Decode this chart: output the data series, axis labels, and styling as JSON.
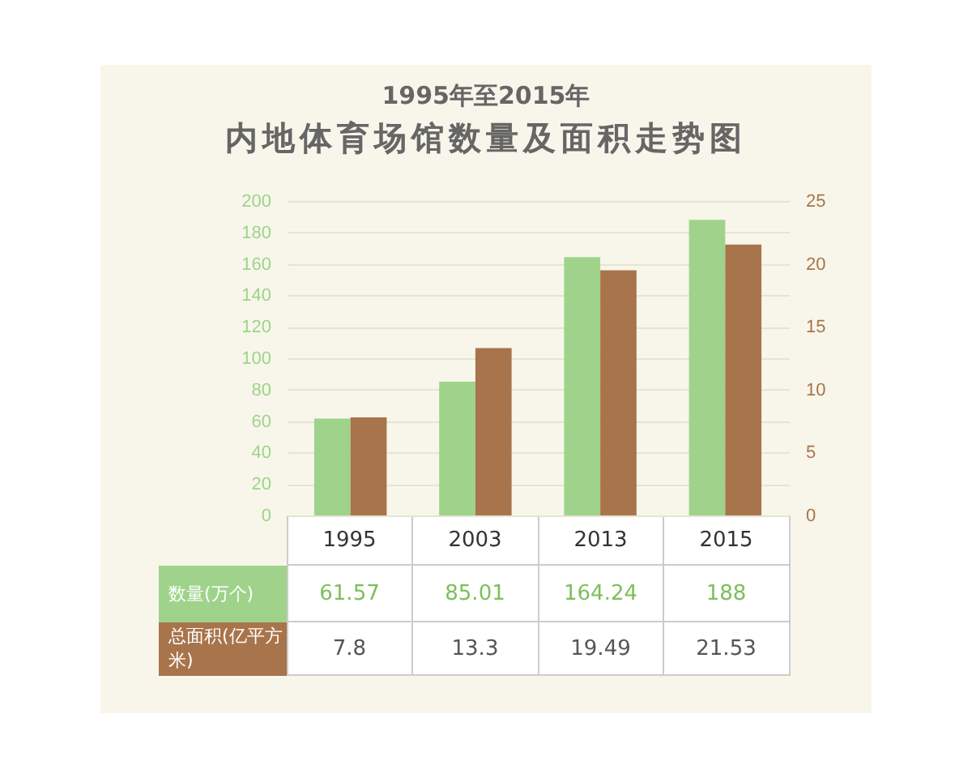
{
  "chart_data": {
    "type": "bar",
    "title": "内地体育场馆数量及面积走势图",
    "subtitle": "1995年至2015年",
    "categories": [
      "1995",
      "2003",
      "2013",
      "2015"
    ],
    "series": [
      {
        "name": "数量(万个)",
        "color": "#9fd38b",
        "values": [
          61.57,
          85.01,
          164.24,
          188
        ]
      },
      {
        "name": "总面积(亿平方米)",
        "color": "#a8744b",
        "values": [
          7.8,
          13.3,
          19.49,
          21.53
        ],
        "axis": "y2"
      }
    ],
    "ylim": [
      0,
      200
    ],
    "yticks": [
      0,
      20,
      40,
      60,
      80,
      100,
      120,
      140,
      160,
      180,
      200
    ],
    "y2lim": [
      0,
      25
    ],
    "y2ticks": [
      0,
      5,
      10,
      15,
      20,
      25
    ],
    "grid": "y",
    "data_labels": true
  }
}
